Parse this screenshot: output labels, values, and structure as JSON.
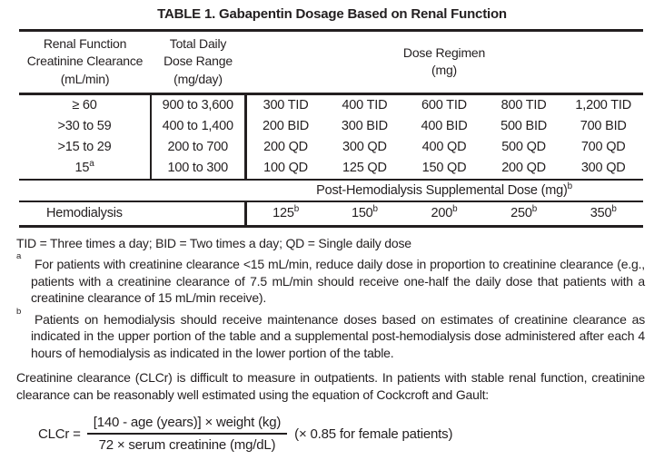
{
  "colors": {
    "ink": "#231f20",
    "background": "#ffffff"
  },
  "title": "TABLE 1. Gabapentin Dosage Based on Renal Function",
  "table": {
    "headers": {
      "renal_function": "Renal Function\nCreatinine Clearance\n(mL/min)",
      "total_daily": "Total Daily\nDose Range\n(mg/day)",
      "dose_regimen": "Dose Regimen\n(mg)"
    },
    "rows": [
      {
        "clearance": "≥ 60",
        "range": "900 to 3,600",
        "doses": [
          "300 TID",
          "400 TID",
          "600 TID",
          "800 TID",
          "1,200 TID"
        ]
      },
      {
        "clearance": ">30 to 59",
        "range": "400 to 1,400",
        "doses": [
          "200 BID",
          "300 BID",
          "400 BID",
          "500 BID",
          "700 BID"
        ]
      },
      {
        "clearance": ">15 to 29",
        "range": "200 to 700",
        "doses": [
          "200 QD",
          "300 QD",
          "400 QD",
          "500 QD",
          "700 QD"
        ]
      },
      {
        "clearance": "15",
        "clearance_sup": "a",
        "range": "100 to 300",
        "doses": [
          "100 QD",
          "125 QD",
          "150 QD",
          "200 QD",
          "300 QD"
        ]
      }
    ],
    "post_hemodialysis": {
      "label": "Post-Hemodialysis Supplemental Dose (mg)",
      "sup": "b"
    },
    "hemodialysis": {
      "label": "Hemodialysis",
      "doses": [
        "125",
        "150",
        "200",
        "250",
        "350"
      ],
      "sup": "b"
    }
  },
  "footnotes": {
    "abbreviations": "TID = Three times a day; BID = Two times a day; QD = Single daily dose",
    "a": {
      "marker": "a",
      "text": "For patients with creatinine clearance <15 mL/min, reduce daily dose in proportion to creatinine clearance (e.g., patients with a creatinine clearance of 7.5 mL/min should receive one-half the daily dose that patients with a creatinine clearance of 15 mL/min receive)."
    },
    "b": {
      "marker": "b",
      "text": "Patients on hemodialysis should receive maintenance doses based on estimates of creatinine clearance as indicated in the upper portion of the table and a supplemental post-hemodialysis dose administered after each 4 hours of hemodialysis as indicated in the lower portion of the table."
    }
  },
  "paragraph": "Creatinine clearance (CLCr) is difficult to measure in outpatients. In patients with stable renal function, creatinine clearance can be reasonably well estimated using the equation of Cockcroft and Gault:",
  "formula": {
    "lhs": "CLCr =",
    "numerator": "[140 - age (years)] × weight (kg)",
    "denominator": "72 × serum creatinine (mg/dL)",
    "suffix": "(× 0.85 for female patients)"
  }
}
